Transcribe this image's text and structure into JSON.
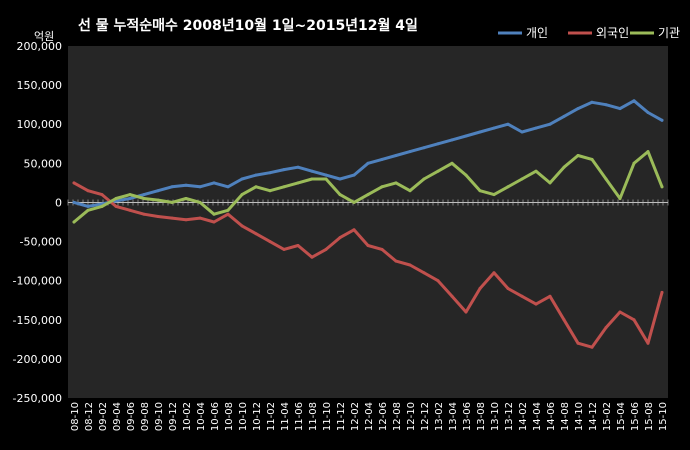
{
  "chart_data": {
    "type": "line",
    "title": "선 물 누적순매수 2008년10월 1일~2015년12월 4일",
    "ylabel": "억원",
    "xlabel": "",
    "ylim": [
      -250000,
      200000
    ],
    "y_ticks": [
      200000,
      150000,
      100000,
      50000,
      0,
      -50000,
      -100000,
      -150000,
      -200000,
      -250000
    ],
    "y_tick_labels": [
      "200,000",
      "150,000",
      "100,000",
      "50,000",
      "0",
      "-50,000",
      "-100,000",
      "-150,000",
      "-200,000",
      "-250,000"
    ],
    "categories": [
      "08-10",
      "08-12",
      "09-02",
      "09-04",
      "09-06",
      "09-08",
      "09-10",
      "09-12",
      "10-02",
      "10-04",
      "10-06",
      "10-08",
      "10-10",
      "10-12",
      "11-02",
      "11-04",
      "11-06",
      "11-08",
      "11-10",
      "11-12",
      "12-02",
      "12-04",
      "12-06",
      "12-08",
      "12-10",
      "12-12",
      "13-02",
      "13-04",
      "13-06",
      "13-08",
      "13-10",
      "13-12",
      "14-02",
      "14-04",
      "14-06",
      "14-08",
      "14-10",
      "14-12",
      "15-02",
      "15-04",
      "15-06",
      "15-08",
      "15-10"
    ],
    "legend_position": "top-right",
    "grid": false,
    "series": [
      {
        "name": "개인",
        "color": "#4f81bd",
        "values": [
          0,
          -5000,
          -2000,
          2000,
          5000,
          10000,
          15000,
          20000,
          22000,
          20000,
          25000,
          20000,
          30000,
          35000,
          38000,
          42000,
          45000,
          40000,
          35000,
          30000,
          35000,
          50000,
          55000,
          60000,
          65000,
          70000,
          75000,
          80000,
          85000,
          90000,
          95000,
          100000,
          90000,
          95000,
          100000,
          110000,
          120000,
          128000,
          125000,
          120000,
          130000,
          115000,
          105000
        ]
      },
      {
        "name": "외국인",
        "color": "#c0504d",
        "values": [
          25000,
          15000,
          10000,
          -5000,
          -10000,
          -15000,
          -18000,
          -20000,
          -22000,
          -20000,
          -25000,
          -15000,
          -30000,
          -40000,
          -50000,
          -60000,
          -55000,
          -70000,
          -60000,
          -45000,
          -35000,
          -55000,
          -60000,
          -75000,
          -80000,
          -90000,
          -100000,
          -120000,
          -140000,
          -110000,
          -90000,
          -110000,
          -120000,
          -130000,
          -120000,
          -150000,
          -180000,
          -185000,
          -160000,
          -140000,
          -150000,
          -180000,
          -115000
        ]
      },
      {
        "name": "기관",
        "color": "#9bbb59",
        "values": [
          -25000,
          -10000,
          -5000,
          5000,
          10000,
          5000,
          3000,
          0,
          5000,
          0,
          -15000,
          -10000,
          10000,
          20000,
          15000,
          20000,
          25000,
          30000,
          30000,
          10000,
          0,
          10000,
          20000,
          25000,
          15000,
          30000,
          40000,
          50000,
          35000,
          15000,
          10000,
          20000,
          30000,
          40000,
          25000,
          45000,
          60000,
          55000,
          30000,
          5000,
          50000,
          65000,
          20000
        ]
      }
    ]
  }
}
